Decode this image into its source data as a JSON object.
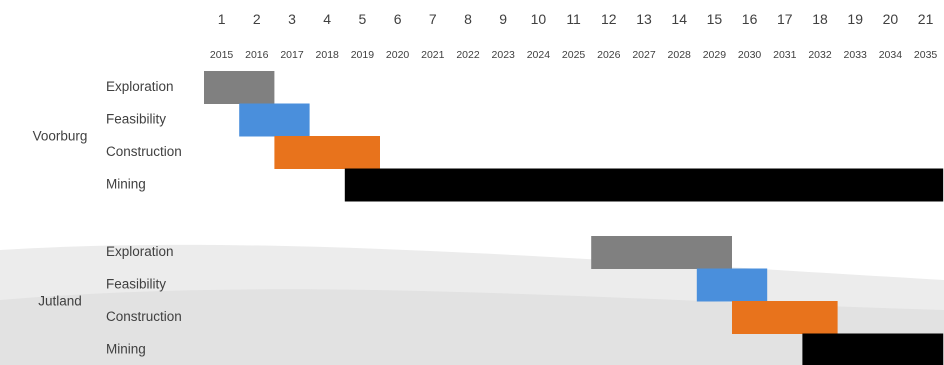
{
  "chart_data": {
    "type": "gantt",
    "periods": [
      "1",
      "2",
      "3",
      "4",
      "5",
      "6",
      "7",
      "8",
      "9",
      "10",
      "11",
      "12",
      "13",
      "14",
      "15",
      "16",
      "17",
      "18",
      "19",
      "20",
      "21"
    ],
    "years": [
      "2015",
      "2016",
      "2017",
      "2018",
      "2019",
      "2020",
      "2021",
      "2022",
      "2023",
      "2024",
      "2025",
      "2026",
      "2027",
      "2028",
      "2029",
      "2030",
      "2031",
      "2032",
      "2033",
      "2034",
      "2035"
    ],
    "colors": {
      "Exploration": "#808080",
      "Feasibility": "#4a8fdc",
      "Construction": "#e8731c",
      "Mining": "#000000"
    },
    "groups": [
      {
        "site": "Voorburg",
        "tasks": [
          {
            "label": "Exploration",
            "start": 2015,
            "end": 2017
          },
          {
            "label": "Feasibility",
            "start": 2016,
            "end": 2018
          },
          {
            "label": "Construction",
            "start": 2017,
            "end": 2020
          },
          {
            "label": "Mining",
            "start": 2019,
            "end": 2036
          }
        ]
      },
      {
        "site": "Jutland",
        "tasks": [
          {
            "label": "Exploration",
            "start": 2026,
            "end": 2030
          },
          {
            "label": "Feasibility",
            "start": 2029,
            "end": 2031
          },
          {
            "label": "Construction",
            "start": 2030,
            "end": 2033
          },
          {
            "label": "Mining",
            "start": 2032,
            "end": 2036
          }
        ]
      }
    ]
  }
}
